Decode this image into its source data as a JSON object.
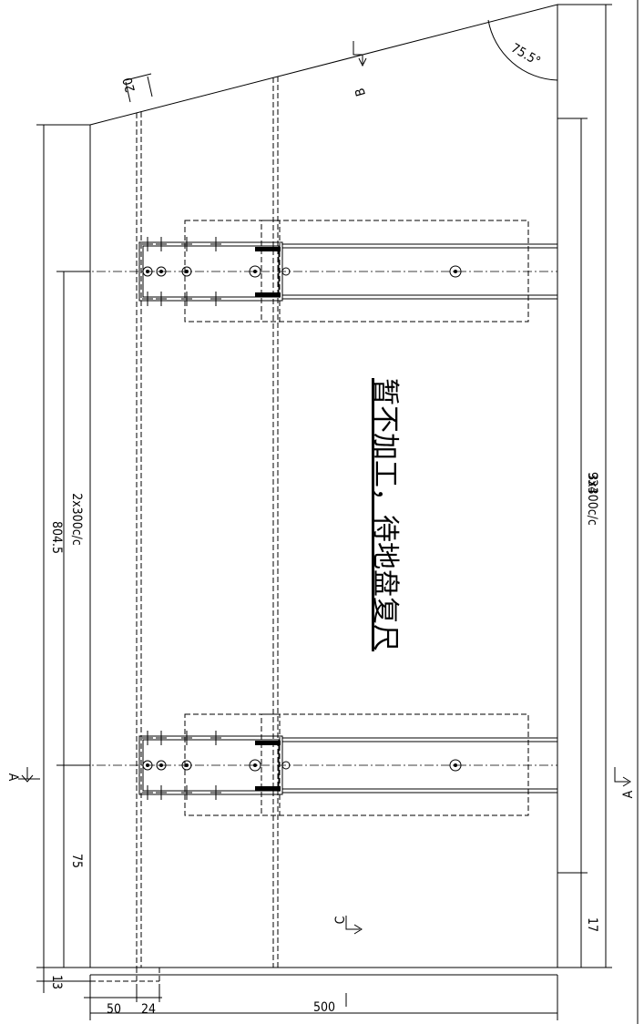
{
  "dimensions": {
    "top_offset": "20",
    "angle": "75.5°",
    "left_total": "804.5",
    "left_spacing": "2x300c/c",
    "left_end": "75",
    "right_total": "934",
    "right_spacing": "3x300c/c",
    "right_end": "17",
    "bottom_small": "13",
    "bottom_a": "50",
    "bottom_b": "24",
    "bottom_total": "500"
  },
  "sections": {
    "b": "B",
    "a_left": "A",
    "a_right": "A",
    "c": "C"
  },
  "note": "暂不加工，待地盘复尺"
}
